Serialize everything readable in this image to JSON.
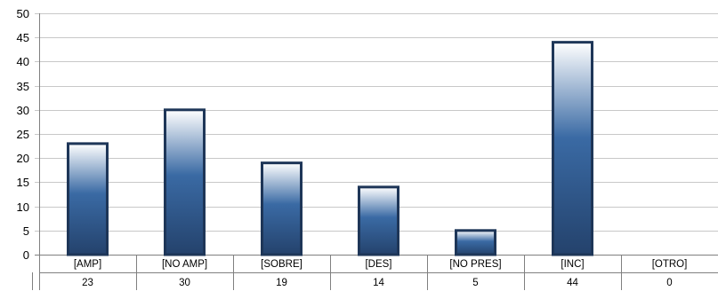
{
  "chart_data": {
    "type": "table",
    "chart_type": "bar",
    "categories": [
      "[AMP]",
      "[NO AMP]",
      "[SOBRE]",
      "[DES]",
      "[NO PRES]",
      "[INC]",
      "[OTRO]"
    ],
    "values": [
      23,
      30,
      19,
      14,
      5,
      44,
      0
    ],
    "value_labels": [
      "23",
      "30",
      "19",
      "14",
      "5",
      "44",
      "0"
    ],
    "ylim": [
      0,
      50
    ],
    "yticks": [
      0,
      5,
      10,
      15,
      20,
      25,
      30,
      35,
      40,
      45,
      50
    ],
    "ytick_labels": [
      "0",
      "5",
      "10",
      "15",
      "20",
      "25",
      "30",
      "35",
      "40",
      "45",
      "50"
    ],
    "grid": true,
    "data_table": true,
    "colors": {
      "bar_dark": "#24426c",
      "bar_mid": "#3a6aa4",
      "bar_light": "#ffffff",
      "bar_outline": "#1e3658",
      "grid": "#c8c8c8",
      "axis": "#808080"
    }
  }
}
